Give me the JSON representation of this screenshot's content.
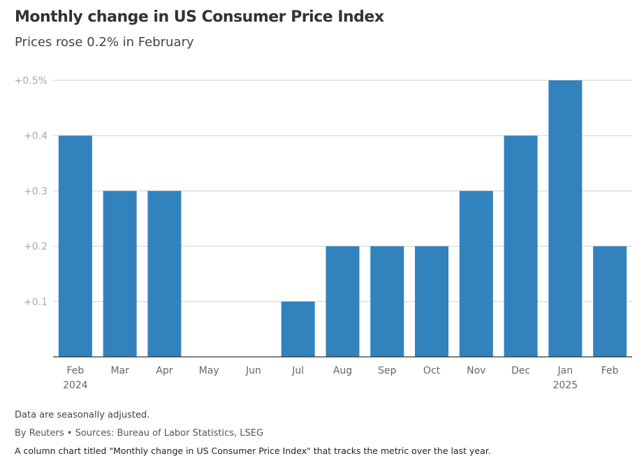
{
  "title": "Monthly change in US Consumer Price Index",
  "subtitle": "Prices rose 0.2% in February",
  "footer": {
    "note": "Data are seasonally adjusted.",
    "source": "By Reuters • Sources: Bureau of Labor Statistics, LSEG",
    "description": "A column chart titled \"Monthly change in US Consumer Price Index\" that tracks the metric over the last year."
  },
  "chart_data": {
    "type": "bar",
    "title": "Monthly change in US Consumer Price Index",
    "categories": [
      "Feb",
      "Mar",
      "Apr",
      "May",
      "Jun",
      "Jul",
      "Aug",
      "Sep",
      "Oct",
      "Nov",
      "Dec",
      "Jan",
      "Feb"
    ],
    "category_sublabels": [
      "2024",
      "",
      "",
      "",
      "",
      "",
      "",
      "",
      "",
      "",
      "",
      "2025",
      ""
    ],
    "values": [
      0.4,
      0.3,
      0.3,
      0.0,
      0.0,
      0.1,
      0.2,
      0.2,
      0.2,
      0.3,
      0.4,
      0.5,
      0.2
    ],
    "ylim": [
      0,
      0.5
    ],
    "yticks": [
      0.1,
      0.2,
      0.3,
      0.4,
      0.5
    ],
    "ytick_labels": [
      "+0.1",
      "+0.2",
      "+0.3",
      "+0.4",
      "+0.5%"
    ],
    "xlabel": "",
    "ylabel": "",
    "grid": true,
    "bar_color": "#3282bd"
  }
}
